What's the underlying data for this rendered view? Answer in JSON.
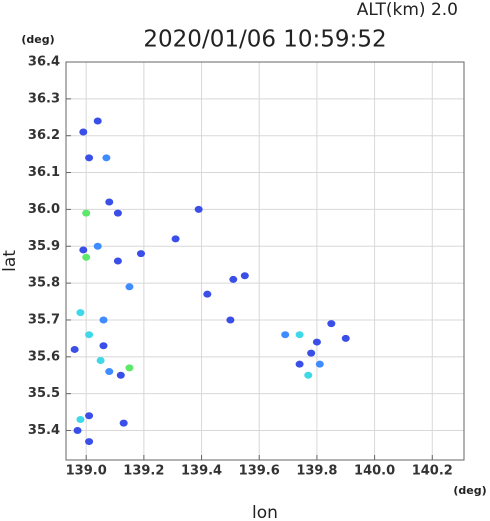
{
  "chart_data": {
    "type": "scatter",
    "title": "2020/01/06 10:59:52",
    "subtitle": "ALT(km) 2.0",
    "x_unit": "(deg)",
    "y_unit": "(deg)",
    "x_label": "lon",
    "y_label": "lat",
    "xlim": [
      138.93,
      140.31
    ],
    "ylim": [
      35.32,
      36.4
    ],
    "xticks": [
      {
        "value": 139,
        "label": "139.0"
      },
      139.2,
      139.4,
      139.6,
      139.8,
      {
        "value": 140,
        "label": "140.0"
      },
      140.2
    ],
    "yticks": [
      35.4,
      35.5,
      35.6,
      35.7,
      35.8,
      35.9,
      {
        "value": 36,
        "label": "36.0"
      },
      36.1,
      36.2,
      36.3,
      36.4
    ],
    "grid": true,
    "series": [
      {
        "color": "#3a4ee8",
        "x": [
          138.99,
          139.04,
          139.01,
          139.08,
          139.11,
          138.99,
          139.11,
          139.19,
          139.31,
          139.39,
          139.42,
          139.51,
          139.55,
          139.5,
          139.06,
          138.96,
          139.12,
          138.97,
          139.01,
          139.13,
          139.01,
          139.85,
          139.8,
          139.78,
          139.74,
          139.9
        ],
        "y": [
          36.21,
          36.24,
          36.14,
          36.02,
          35.99,
          35.89,
          35.86,
          35.88,
          35.92,
          36.0,
          35.77,
          35.81,
          35.82,
          35.7,
          35.63,
          35.62,
          35.55,
          35.4,
          35.44,
          35.42,
          35.37,
          35.69,
          35.64,
          35.61,
          35.58,
          35.65
        ]
      },
      {
        "color": "#3f8cff",
        "x": [
          139.07,
          139.04,
          139.15,
          139.06,
          139.08,
          139.69,
          139.81
        ],
        "y": [
          36.14,
          35.9,
          35.79,
          35.7,
          35.56,
          35.66,
          35.58
        ]
      },
      {
        "color": "#3fd8e8",
        "x": [
          138.98,
          139.01,
          139.05,
          138.98,
          139.74,
          139.77
        ],
        "y": [
          35.72,
          35.66,
          35.59,
          35.43,
          35.66,
          35.55
        ]
      },
      {
        "color": "#5ee86a",
        "x": [
          139.0,
          139.0,
          139.15
        ],
        "y": [
          35.99,
          35.87,
          35.57
        ]
      }
    ]
  }
}
